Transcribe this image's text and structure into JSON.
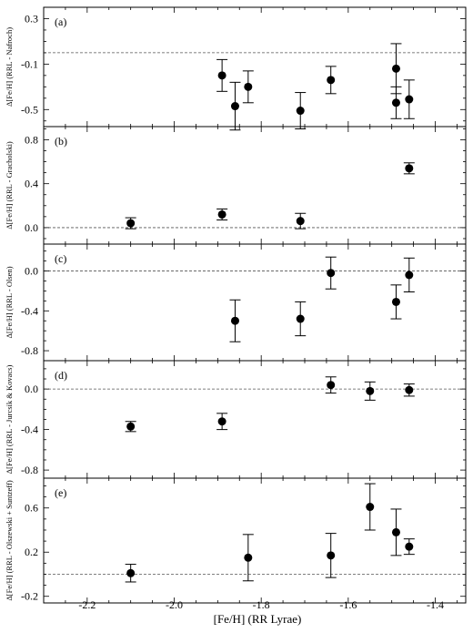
{
  "chart_data": [
    {
      "type": "scatter",
      "panel_label": "(a)",
      "ylabel": "Δ[Fe/H] (RRL - Nafroch)",
      "ylim": [
        -0.65,
        0.4
      ],
      "yticks": [
        0.3,
        -0.1,
        -0.5
      ],
      "ytick_labels": [
        "0.3",
        "-0.1",
        "-0.5"
      ],
      "reference_line": 0.0,
      "points": [
        {
          "x": -1.89,
          "y": -0.2,
          "err": 0.14
        },
        {
          "x": -1.86,
          "y": -0.47,
          "err": 0.21
        },
        {
          "x": -1.83,
          "y": -0.3,
          "err": 0.14
        },
        {
          "x": -1.71,
          "y": -0.51,
          "err": 0.16
        },
        {
          "x": -1.64,
          "y": -0.24,
          "err": 0.12
        },
        {
          "x": -1.49,
          "y": -0.14,
          "err": 0.22
        },
        {
          "x": -1.49,
          "y": -0.44,
          "err": 0.14
        },
        {
          "x": -1.46,
          "y": -0.41,
          "err": 0.17
        }
      ]
    },
    {
      "type": "scatter",
      "panel_label": "(b)",
      "ylabel": "Δ[Fe/H] (RRL - Gracholski)",
      "ylim": [
        -0.15,
        0.92
      ],
      "yticks": [
        0.8,
        0.4,
        0.0
      ],
      "ytick_labels": [
        "0.8",
        "0.4",
        "0.0"
      ],
      "reference_line": 0.0,
      "points": [
        {
          "x": -2.1,
          "y": 0.04,
          "err": 0.05
        },
        {
          "x": -1.89,
          "y": 0.12,
          "err": 0.05
        },
        {
          "x": -1.71,
          "y": 0.06,
          "err": 0.07
        },
        {
          "x": -1.46,
          "y": 0.54,
          "err": 0.05
        }
      ]
    },
    {
      "type": "scatter",
      "panel_label": "(c)",
      "ylabel": "Δ[Fe/H] (RRL - Olsen)",
      "ylim": [
        -0.9,
        0.27
      ],
      "yticks": [
        0.0,
        -0.4,
        -0.8
      ],
      "ytick_labels": [
        "0.0",
        "-0.4",
        "-0.8"
      ],
      "reference_line": 0.0,
      "points": [
        {
          "x": -1.86,
          "y": -0.5,
          "err": 0.21
        },
        {
          "x": -1.71,
          "y": -0.48,
          "err": 0.17
        },
        {
          "x": -1.64,
          "y": -0.02,
          "err": 0.16
        },
        {
          "x": -1.49,
          "y": -0.31,
          "err": 0.17
        },
        {
          "x": -1.46,
          "y": -0.04,
          "err": 0.17
        }
      ]
    },
    {
      "type": "scatter",
      "panel_label": "(d)",
      "ylabel": "Δ[Fe/H] (RRL - Jurcsik & Kovacs)",
      "ylim": [
        -0.88,
        0.28
      ],
      "yticks": [
        0.0,
        -0.4,
        -0.8
      ],
      "ytick_labels": [
        "0.0",
        "-0.4",
        "-0.8"
      ],
      "reference_line": 0.0,
      "points": [
        {
          "x": -2.1,
          "y": -0.37,
          "err": 0.05
        },
        {
          "x": -1.89,
          "y": -0.32,
          "err": 0.08
        },
        {
          "x": -1.64,
          "y": 0.04,
          "err": 0.08
        },
        {
          "x": -1.55,
          "y": -0.02,
          "err": 0.09
        },
        {
          "x": -1.46,
          "y": -0.01,
          "err": 0.06
        }
      ]
    },
    {
      "type": "scatter",
      "panel_label": "(e)",
      "ylabel": "Δ[Fe/H] (RRL - Olszewski + Suntzeff)",
      "ylim": [
        -0.26,
        0.87
      ],
      "yticks": [
        0.6,
        0.2,
        -0.2
      ],
      "ytick_labels": [
        "0.6",
        "0.2",
        "-0.2"
      ],
      "reference_line": 0.0,
      "points": [
        {
          "x": -2.1,
          "y": 0.01,
          "err": 0.08
        },
        {
          "x": -1.83,
          "y": 0.15,
          "err": 0.21
        },
        {
          "x": -1.64,
          "y": 0.17,
          "err": 0.2
        },
        {
          "x": -1.55,
          "y": 0.61,
          "err": 0.21
        },
        {
          "x": -1.49,
          "y": 0.38,
          "err": 0.21
        },
        {
          "x": -1.46,
          "y": 0.25,
          "err": 0.07
        }
      ]
    }
  ],
  "x_axis": {
    "label": "[Fe/H] (RR Lyrae)",
    "xlim": [
      -2.3,
      -1.33
    ],
    "ticks": [
      -2.2,
      -2.0,
      -1.8,
      -1.6,
      -1.4
    ],
    "tick_labels": [
      "-2.2",
      "-2.0",
      "-1.8",
      "-1.6",
      "-1.4"
    ]
  }
}
